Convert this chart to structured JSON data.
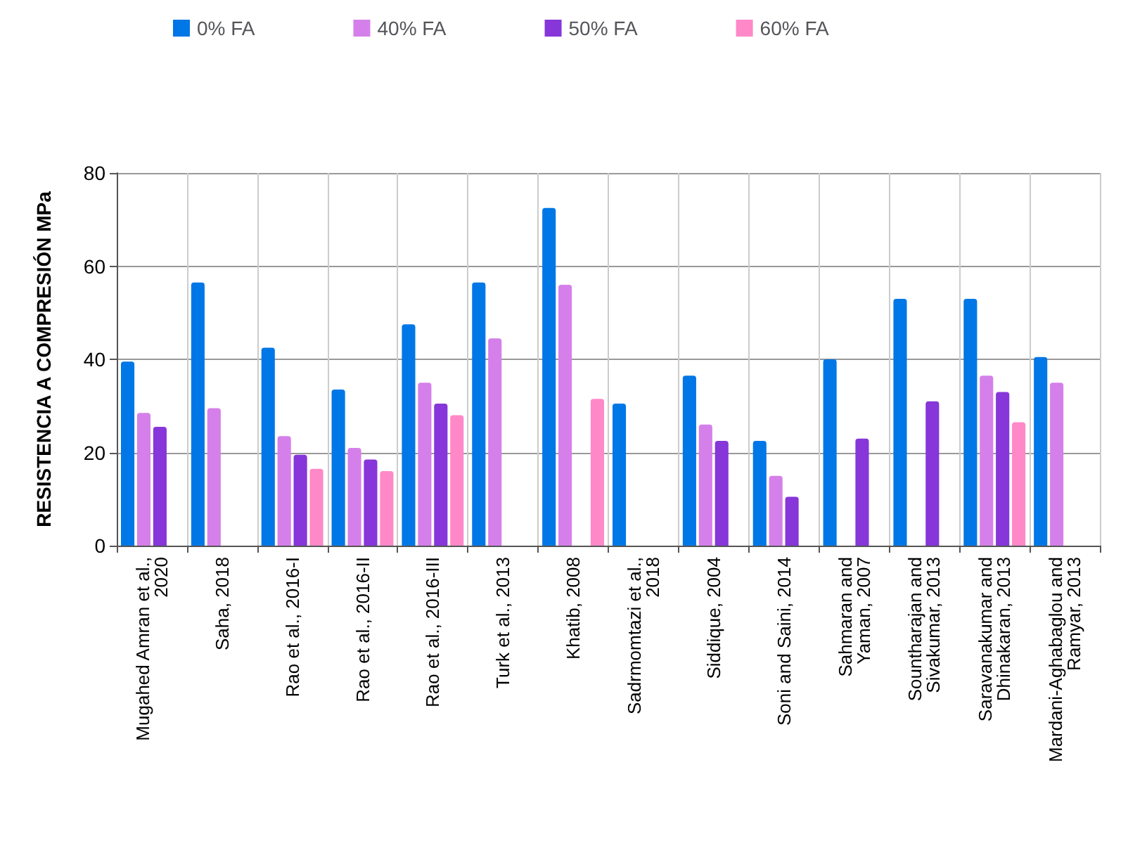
{
  "chart_data": {
    "type": "bar",
    "ylabel": "RESISTENCIA A COMPRESIÓN MPa",
    "categories": [
      "Mugahed Amran et al.,\n2020",
      "Saha, 2018",
      "Rao et al., 2016-I",
      "Rao et al., 2016-II",
      "Rao et al., 2016-III",
      "Turk et al., 2013",
      "Khatib, 2008",
      "Sadrmomtazi et al.,\n2018",
      "Siddique, 2004",
      "Soni and Saini, 2014",
      "Sahmaran and\nYaman, 2007",
      "Sountharajan and\nSivakumar, 2013",
      "Saravanakumar and\nDhinakaran, 2013",
      "Mardani-Aghabaglou and\nRamyar, 2013"
    ],
    "series": [
      {
        "name": "0% FA",
        "color": "#0077e6",
        "values": [
          39.5,
          56.5,
          42.5,
          33.5,
          47.5,
          56.5,
          72.5,
          30.5,
          36.5,
          22.5,
          40,
          53,
          53,
          40.5
        ]
      },
      {
        "name": "40% FA",
        "color": "#d580ea",
        "values": [
          28.5,
          29.5,
          23.5,
          21,
          35,
          44.5,
          56,
          null,
          26,
          15,
          null,
          null,
          36.5,
          35
        ]
      },
      {
        "name": "50% FA",
        "color": "#8636d9",
        "values": [
          25.5,
          null,
          19.5,
          18.5,
          30.5,
          null,
          null,
          null,
          22.5,
          10.5,
          23,
          31,
          33,
          null
        ]
      },
      {
        "name": "60% FA",
        "color": "#ff88c8",
        "values": [
          null,
          null,
          16.5,
          16,
          28,
          null,
          31.5,
          null,
          null,
          null,
          null,
          null,
          26.5,
          null
        ]
      }
    ],
    "ylim": [
      0,
      80
    ],
    "yticks": [
      0,
      20,
      40,
      60,
      80
    ],
    "grid": true,
    "legend": "top"
  }
}
